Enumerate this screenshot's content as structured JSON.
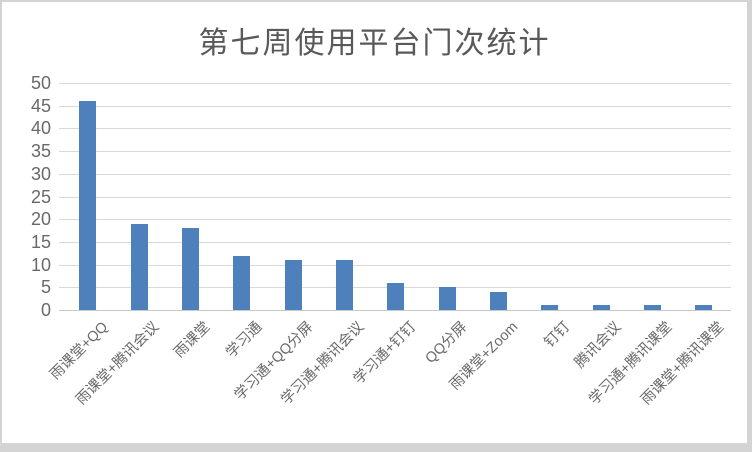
{
  "chart_data": {
    "type": "bar",
    "title": "第七周使用平台门次统计",
    "categories": [
      "雨课堂+QQ",
      "雨课堂+腾讯会议",
      "雨课堂",
      "学习通",
      "学习通+QQ分屏",
      "学习通+腾讯会议",
      "学习通+钉钉",
      "QQ分屏",
      "雨课堂+Zoom",
      "钉钉",
      "腾讯会议",
      "学习通+腾讯课堂",
      "雨课堂+腾讯课堂"
    ],
    "values": [
      46,
      19,
      18,
      12,
      11,
      11,
      6,
      5,
      4,
      1,
      1,
      1,
      1
    ],
    "xlabel": "",
    "ylabel": "",
    "ylim": [
      0,
      50
    ],
    "ytick_step": 5,
    "yticks": [
      0,
      5,
      10,
      15,
      20,
      25,
      30,
      35,
      40,
      45,
      50
    ],
    "grid": true,
    "legend": "none",
    "x_label_rotation_deg": 45,
    "colors": {
      "bar": "#4e80bc",
      "gridline": "#d9d9d9",
      "axis_line": "#c9c9c9",
      "tick_text": "#696969",
      "title_text": "#595959",
      "frame_border": "#d4d4d4"
    }
  }
}
